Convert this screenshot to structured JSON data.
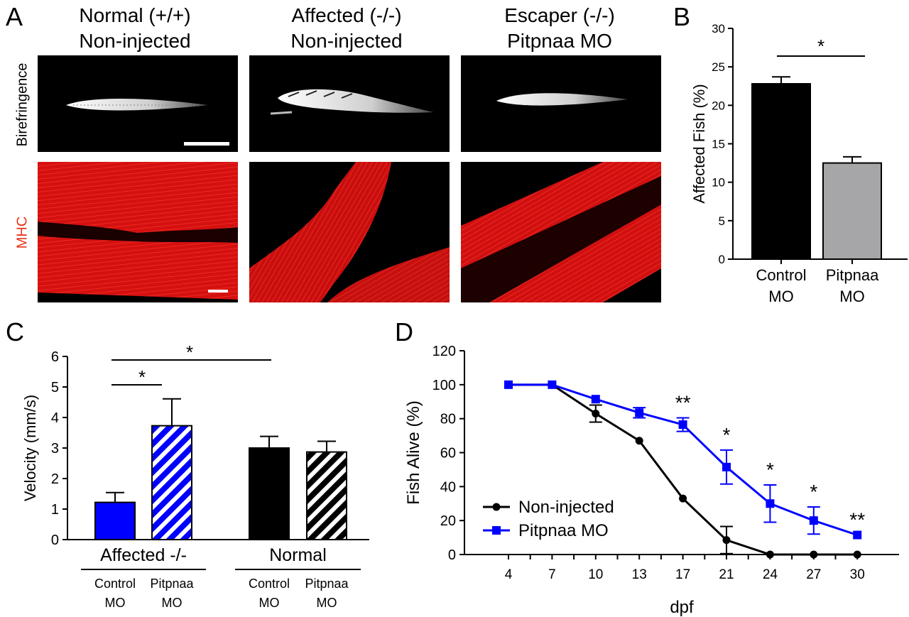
{
  "panel_a": {
    "letter": "A",
    "columns": [
      {
        "line1": "Normal (+/+)",
        "line2": "Non-injected"
      },
      {
        "line1": "Affected (-/-)",
        "line2": "Non-injected"
      },
      {
        "line1": "Escaper (-/-)",
        "line2": "Pitpnaa MO"
      }
    ],
    "row_labels": {
      "top": "Birefringence",
      "bottom": "MHC"
    },
    "colors": {
      "mhc_label": "#e8341c",
      "muscle": "#e01010",
      "background": "#000000"
    }
  },
  "chart_data": [
    {
      "panel": "B",
      "type": "bar",
      "categories": [
        "Control MO",
        "Pitpnaa MO"
      ],
      "tick_labels": [
        [
          "Control",
          "MO"
        ],
        [
          "Pitpnaa",
          "MO"
        ]
      ],
      "values": [
        22.8,
        12.5
      ],
      "errors": [
        0.9,
        0.8
      ],
      "colors": [
        "#000000",
        "#a6a6a8"
      ],
      "ylabel": "Affected Fish (%)",
      "ylim": [
        0,
        30
      ],
      "yticks": [
        0,
        5,
        10,
        15,
        20,
        25,
        30
      ],
      "annotations": [
        {
          "text": "*",
          "between": [
            0,
            1
          ]
        }
      ]
    },
    {
      "panel": "C",
      "type": "bar",
      "groups": [
        "Affected -/-",
        "Normal"
      ],
      "categories": [
        "Control MO",
        "Pitpnaa MO",
        "Control MO",
        "Pitpnaa MO"
      ],
      "tick_labels": [
        [
          "Control",
          "MO"
        ],
        [
          "Pitpnaa",
          "MO"
        ],
        [
          "Control",
          "MO"
        ],
        [
          "Pitpnaa",
          "MO"
        ]
      ],
      "values": [
        1.22,
        3.73,
        3.0,
        2.87
      ],
      "errors": [
        0.32,
        0.88,
        0.38,
        0.35
      ],
      "colors": [
        "#0000ff",
        "#0000ff",
        "#000000",
        "#000000"
      ],
      "hatched": [
        false,
        true,
        false,
        true
      ],
      "ylabel": "Velocity (mm/s)",
      "ylim": [
        0,
        6
      ],
      "yticks": [
        0,
        1,
        2,
        3,
        4,
        5,
        6
      ],
      "annotations": [
        {
          "text": "*",
          "between": [
            0,
            1
          ]
        },
        {
          "text": "*",
          "between": [
            0,
            2
          ]
        }
      ]
    },
    {
      "panel": "D",
      "type": "line",
      "x": [
        4,
        7,
        10,
        13,
        17,
        21,
        24,
        27,
        30
      ],
      "xlabel": "dpf",
      "ylabel": "Fish Alive (%)",
      "ylim": [
        0,
        120
      ],
      "yticks": [
        0,
        20,
        40,
        60,
        80,
        100,
        120
      ],
      "series": [
        {
          "name": "Non-injected",
          "color": "#000000",
          "marker": "circle",
          "values": [
            100,
            100,
            83,
            67,
            33,
            8.5,
            0,
            0,
            0
          ],
          "errors": [
            0,
            0,
            5,
            0,
            0,
            8,
            0,
            0,
            0
          ]
        },
        {
          "name": "Pitpnaa MO",
          "color": "#0000ff",
          "marker": "square",
          "values": [
            100,
            100,
            91.5,
            83.5,
            76.5,
            51.5,
            30,
            20,
            11.5
          ],
          "errors": [
            0,
            0,
            0,
            3,
            4,
            10,
            11,
            8,
            0
          ]
        }
      ],
      "significance": [
        {
          "x": 17,
          "text": "**"
        },
        {
          "x": 21,
          "text": "*"
        },
        {
          "x": 24,
          "text": "*"
        },
        {
          "x": 27,
          "text": "*"
        },
        {
          "x": 30,
          "text": "**"
        }
      ],
      "legend_position": "bottom-left"
    }
  ],
  "panel_letters": {
    "b": "B",
    "c": "C",
    "d": "D"
  }
}
